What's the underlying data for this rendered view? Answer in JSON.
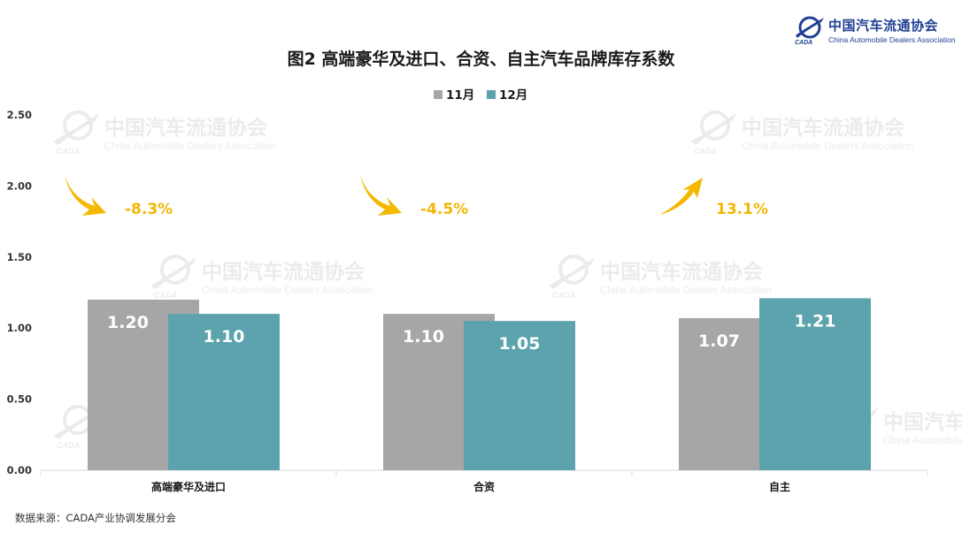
{
  "logo": {
    "name_cn": "中国汽车流通协会",
    "name_en": "China Automobile Dealers Association",
    "emblem": "CADA"
  },
  "watermark": {
    "name_cn": "中国汽车流通协会",
    "name_en": "China Automobile Dealers Association",
    "emblem": "CADA"
  },
  "source_note": "数据来源：CADA产业协调发展分会",
  "colors": {
    "series_11": "#a6a6a6",
    "series_12": "#5ca3ad",
    "arrow": "#f5b800",
    "change_label": "#f2b705",
    "grid_axis": "#d9d9d9",
    "logo_blue": "#1f3f94"
  },
  "chart_data": {
    "type": "bar",
    "title": "图2  高端豪华及进口、合资、自主汽车品牌库存系数",
    "categories": [
      "高端豪华及进口",
      "合资",
      "自主"
    ],
    "series": [
      {
        "name": "11月",
        "values": [
          1.2,
          1.1,
          1.07
        ],
        "labels": [
          "1.20",
          "1.10",
          "1.07"
        ]
      },
      {
        "name": "12月",
        "values": [
          1.1,
          1.05,
          1.21
        ],
        "labels": [
          "1.10",
          "1.05",
          "1.21"
        ]
      }
    ],
    "changes": [
      {
        "label": "-8.3%",
        "direction": "down"
      },
      {
        "label": "-4.5%",
        "direction": "down"
      },
      {
        "label": "13.1%",
        "direction": "up"
      }
    ],
    "ylim": [
      0,
      2.5
    ],
    "yticks": [
      "0.00",
      "0.50",
      "1.00",
      "1.50",
      "2.00",
      "2.50"
    ],
    "legend_position": "top-center",
    "grid": false,
    "xlabel": "",
    "ylabel": ""
  }
}
